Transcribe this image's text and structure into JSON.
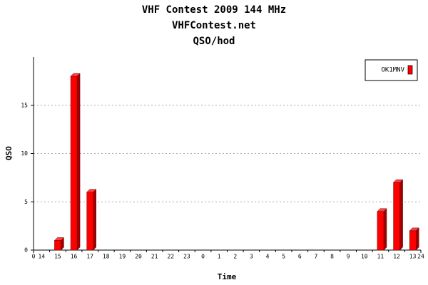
{
  "chart_data": {
    "type": "bar",
    "title": "VHF Contest 2009 144 MHz",
    "subtitle": "VHFContest.net",
    "subtitle2": "QSO/hod",
    "x_label": "Time",
    "y_label": "QSO",
    "categories": [
      "14",
      "15",
      "16",
      "17",
      "18",
      "19",
      "20",
      "21",
      "22",
      "23",
      "0",
      "1",
      "2",
      "3",
      "4",
      "5",
      "6",
      "7",
      "8",
      "9",
      "10",
      "11",
      "12",
      "13"
    ],
    "xlim": [
      0,
      24
    ],
    "xticks": [
      0,
      24
    ],
    "series": [
      {
        "name": "OK1MNV",
        "color": "#ff0000",
        "values": [
          0,
          1,
          18,
          6,
          0,
          0,
          0,
          0,
          0,
          0,
          0,
          0,
          0,
          0,
          0,
          0,
          0,
          0,
          0,
          0,
          0,
          4,
          7,
          2
        ]
      }
    ],
    "ylim": [
      0,
      20
    ],
    "yticks": [
      0,
      5,
      10,
      15
    ],
    "grid": true,
    "legend": "top-right"
  }
}
